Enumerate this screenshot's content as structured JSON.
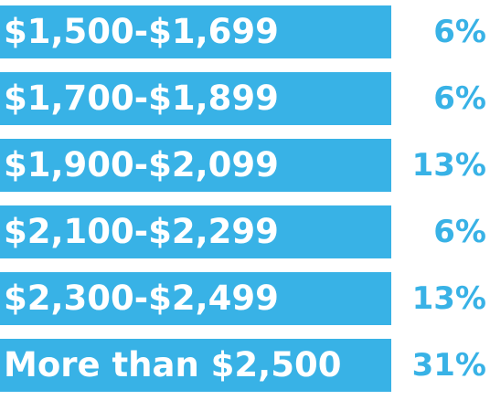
{
  "colors": {
    "bar": "#38b2e6",
    "bar_text": "#ffffff",
    "value_text": "#38b2e6",
    "background": "#ffffff"
  },
  "chart_data": {
    "type": "bar",
    "orientation": "horizontal",
    "categories": [
      "$1,500-$1,699",
      "$1,700-$1,899",
      "$1,900-$2,099",
      "$2,100-$2,299",
      "$2,300-$2,499",
      "More than $2,500"
    ],
    "values": [
      6,
      6,
      13,
      6,
      13,
      31
    ],
    "value_labels": [
      "6%",
      "6%",
      "13%",
      "6%",
      "13%",
      "31%"
    ],
    "unit": "%",
    "title": "",
    "xlabel": "",
    "ylabel": "",
    "grid": false
  }
}
